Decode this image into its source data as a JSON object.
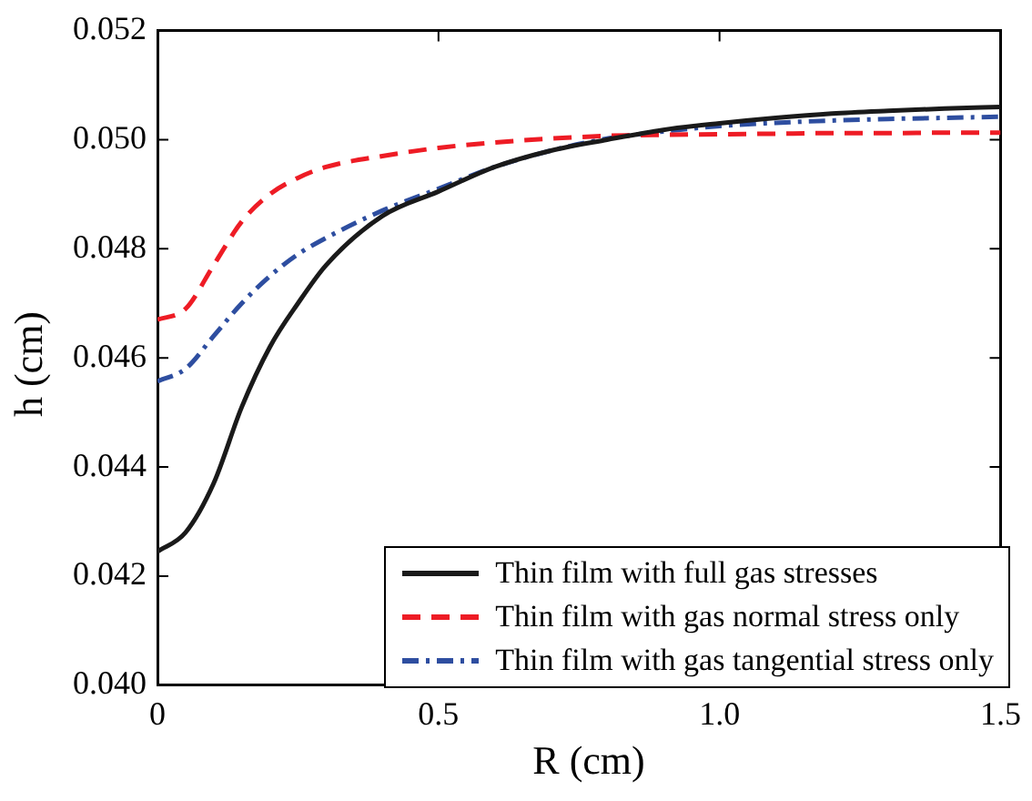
{
  "chart_data": {
    "type": "line",
    "xlabel": "R (cm)",
    "ylabel": "h (cm)",
    "xlim": [
      0,
      1.5
    ],
    "xticks": [
      0,
      0.5,
      {
        "value": 1,
        "label": "1.0"
      },
      1.5
    ],
    "ylim": [
      0.04,
      0.052
    ],
    "yticks": [
      {
        "value": 0.04,
        "label": "0.040"
      },
      {
        "value": 0.042,
        "label": "0.042"
      },
      {
        "value": 0.044,
        "label": "0.044"
      },
      {
        "value": 0.046,
        "label": "0.046"
      },
      {
        "value": 0.048,
        "label": "0.048"
      },
      {
        "value": 0.05,
        "label": "0.050"
      },
      {
        "value": 0.052,
        "label": "0.052"
      }
    ],
    "grid": false,
    "legend": "bottom right",
    "marker": "none",
    "x": [
      0,
      0.05,
      0.1,
      0.15,
      0.2,
      0.25,
      0.3,
      0.4,
      0.5,
      0.6,
      0.7,
      0.8,
      0.9,
      1.0,
      1.1,
      1.2,
      1.3,
      1.4,
      1.5
    ],
    "series": [
      {
        "name": "Thin film with full gas stresses",
        "color": "#1a1a1a",
        "line_style": "solid",
        "values": [
          0.04245,
          0.0428,
          0.0437,
          0.0451,
          0.0462,
          0.047,
          0.0477,
          0.0486,
          0.04905,
          0.0495,
          0.0498,
          0.05,
          0.05018,
          0.0503,
          0.0504,
          0.05048,
          0.05053,
          0.05057,
          0.0506
        ]
      },
      {
        "name": "Thin film with gas normal stress only",
        "color": "#ee1c25",
        "line_style": "dashed",
        "values": [
          0.0467,
          0.0469,
          0.0477,
          0.0485,
          0.049,
          0.0493,
          0.0495,
          0.0497,
          0.04985,
          0.04995,
          0.05002,
          0.05007,
          0.05009,
          0.0501,
          0.05011,
          0.05012,
          0.05012,
          0.05013,
          0.05013
        ]
      },
      {
        "name": "Thin film with gas tangential stress only",
        "color": "#2e4ea0",
        "line_style": "dashdot",
        "values": [
          0.04557,
          0.0458,
          0.0464,
          0.047,
          0.0475,
          0.0479,
          0.0482,
          0.0487,
          0.0491,
          0.0495,
          0.0498,
          0.05002,
          0.05015,
          0.05025,
          0.05031,
          0.05035,
          0.05038,
          0.0504,
          0.05042
        ]
      }
    ]
  }
}
